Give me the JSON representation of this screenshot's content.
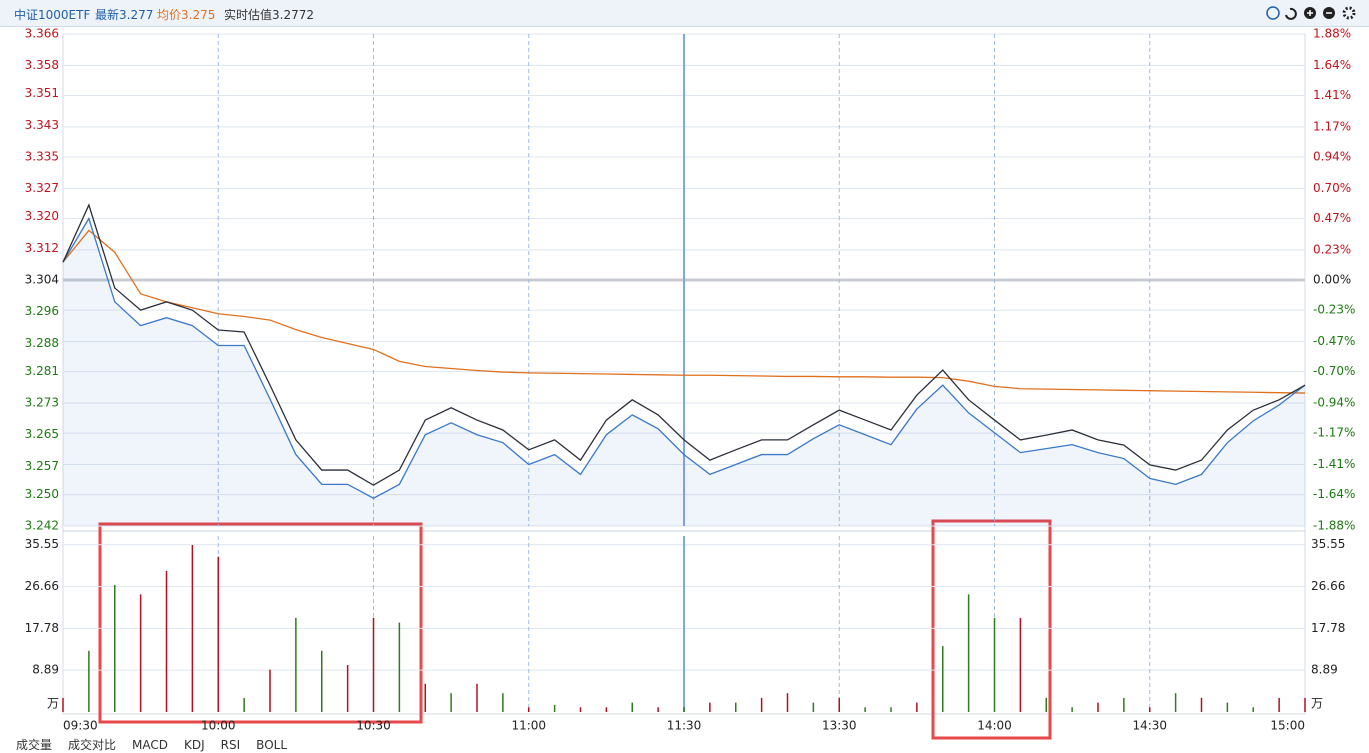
{
  "header": {
    "name": "中证1000ETF",
    "latest": "最新3.277",
    "avg": "均价3.275",
    "iopv": "实时估值3.2772"
  },
  "tabs": [
    "成交量",
    "成交对比",
    "MACD",
    "KDJ",
    "RSI",
    "BOLL"
  ],
  "chart_data": [
    {
      "type": "line",
      "x": [
        0,
        5,
        10,
        15,
        20,
        25,
        30,
        35,
        40,
        45,
        50,
        55,
        60,
        65,
        70,
        75,
        80,
        85,
        90,
        95,
        100,
        105,
        110,
        115,
        120,
        125,
        130,
        135,
        140,
        145,
        150,
        155,
        160,
        165,
        170,
        175,
        180,
        185,
        190,
        195,
        200,
        205,
        210,
        215,
        220,
        225,
        230,
        235,
        240
      ],
      "series": [
        {
          "color": "#2b2f3a",
          "values": [
            3.3085,
            3.3229,
            3.302,
            3.2964,
            3.2985,
            3.2964,
            3.2914,
            3.2909,
            3.2775,
            3.2637,
            3.2561,
            3.2561,
            3.2523,
            3.2561,
            3.2687,
            3.2718,
            3.2687,
            3.2662,
            3.2612,
            3.2637,
            3.2586,
            3.2687,
            3.2738,
            3.27,
            3.2637,
            3.2586,
            3.2612,
            3.2637,
            3.2637,
            3.2675,
            3.2712,
            3.2687,
            3.2662,
            3.275,
            3.2813,
            3.2738,
            3.2687,
            3.2637,
            3.2649,
            3.2662,
            3.2637,
            3.2624,
            3.2574,
            3.2561,
            3.2586,
            3.2662,
            3.2712,
            3.2738,
            3.2775
          ]
        },
        {
          "color": "#3a78c9",
          "values": [
            3.3085,
            3.3195,
            3.2985,
            3.2925,
            3.2945,
            3.2925,
            3.2875,
            3.2875,
            3.274,
            3.26,
            3.2525,
            3.2525,
            3.249,
            3.2525,
            3.265,
            3.268,
            3.265,
            3.263,
            3.2575,
            3.26,
            3.255,
            3.265,
            3.27,
            3.2665,
            3.26,
            3.255,
            3.2575,
            3.26,
            3.26,
            3.264,
            3.2675,
            3.265,
            3.2625,
            3.2715,
            3.2775,
            3.2705,
            3.2655,
            3.2605,
            3.2615,
            3.2625,
            3.2605,
            3.259,
            3.254,
            3.2525,
            3.255,
            3.263,
            3.2685,
            3.2725,
            3.2775
          ]
        },
        {
          "color": "#e0701e",
          "values": [
            3.3085,
            3.3165,
            3.311,
            3.3005,
            3.2985,
            3.297,
            3.2955,
            3.2948,
            3.2939,
            3.2915,
            3.2895,
            3.288,
            3.2865,
            3.2835,
            3.2822,
            3.2817,
            3.2812,
            3.2808,
            3.2806,
            3.2805,
            3.2804,
            3.2803,
            3.2802,
            3.2801,
            3.28,
            3.28,
            3.2799,
            3.2798,
            3.2797,
            3.2797,
            3.2796,
            3.2796,
            3.2795,
            3.2795,
            3.2794,
            3.2785,
            3.2772,
            3.2766,
            3.2765,
            3.2764,
            3.2763,
            3.2762,
            3.2761,
            3.276,
            3.2759,
            3.2758,
            3.2757,
            3.2756,
            3.2755
          ]
        }
      ],
      "xlim": [
        0,
        240
      ],
      "ylim": [
        3.242,
        3.366
      ],
      "yticks": [
        3.366,
        3.358,
        3.351,
        3.343,
        3.335,
        3.327,
        {
          "value": 3.32,
          "label": "3.320"
        },
        3.312,
        3.304,
        3.296,
        3.288,
        3.281,
        3.273,
        3.265,
        3.257,
        {
          "value": 3.25,
          "label": "3.250"
        },
        3.242
      ],
      "y2lim": [
        -1.88,
        1.88
      ],
      "y2ticks": [
        {
          "value": 1.88,
          "label": "1.88%"
        },
        {
          "value": 1.64,
          "label": "1.64%"
        },
        {
          "value": 1.41,
          "label": "1.41%"
        },
        {
          "value": 1.17,
          "label": "1.17%"
        },
        {
          "value": 0.94,
          "label": "0.94%"
        },
        {
          "value": 0.7,
          "label": "0.70%"
        },
        {
          "value": 0.47,
          "label": "0.47%"
        },
        {
          "value": 0.23,
          "label": "0.23%"
        },
        {
          "value": 0,
          "label": "0.00%"
        },
        {
          "value": -0.23,
          "label": "-0.23%"
        },
        {
          "value": -0.47,
          "label": "-0.47%"
        },
        {
          "value": -0.7,
          "label": "-0.70%"
        },
        {
          "value": -0.94,
          "label": "-0.94%"
        },
        {
          "value": -1.17,
          "label": "-1.17%"
        },
        {
          "value": -1.41,
          "label": "-1.41%"
        },
        {
          "value": -1.64,
          "label": "-1.64%"
        },
        {
          "value": -1.88,
          "label": "-1.88%"
        }
      ],
      "grid": true
    },
    {
      "type": "bar",
      "x": [
        0,
        5,
        10,
        15,
        20,
        25,
        30,
        35,
        40,
        45,
        50,
        55,
        60,
        65,
        70,
        75,
        80,
        85,
        90,
        95,
        100,
        105,
        110,
        115,
        120,
        125,
        130,
        135,
        140,
        145,
        150,
        155,
        160,
        165,
        170,
        175,
        180,
        185,
        190,
        195,
        200,
        205,
        210,
        215,
        220,
        225,
        230,
        235,
        240
      ],
      "values": [
        3,
        13,
        27,
        25,
        30,
        35.5,
        33,
        3,
        9,
        20,
        13,
        10,
        20,
        19,
        6,
        4,
        6,
        4,
        1,
        1.5,
        1,
        1,
        2,
        1,
        1,
        2,
        2,
        3,
        4,
        2,
        3,
        1,
        1,
        2,
        14,
        25,
        20,
        20,
        3,
        1,
        2,
        3,
        1,
        4,
        3,
        2,
        1,
        3,
        3
      ],
      "colors": [
        "#b01020",
        "#2f7a1e",
        "#2f7a1e",
        "#b01020",
        "#b01020",
        "#b01020",
        "#b01020",
        "#2f7a1e",
        "#b01020",
        "#2f7a1e",
        "#2f7a1e",
        "#b01020",
        "#b01020",
        "#2f7a1e",
        "#b01020",
        "#2f7a1e",
        "#b01020",
        "#2f7a1e",
        "#b01020",
        "#2f7a1e",
        "#b01020",
        "#b01020",
        "#2f7a1e",
        "#b01020",
        "#2f7a1e",
        "#b01020",
        "#2f7a1e",
        "#b01020",
        "#b01020",
        "#2f7a1e",
        "#b01020",
        "#2f7a1e",
        "#2f7a1e",
        "#b01020",
        "#2f7a1e",
        "#2f7a1e",
        "#2f7a1e",
        "#b01020",
        "#2f7a1e",
        "#2f7a1e",
        "#b01020",
        "#2f7a1e",
        "#b01020",
        "#2f7a1e",
        "#b01020",
        "#2f7a1e",
        "#2f7a1e",
        "#b01020",
        "#b01020"
      ],
      "xlim": [
        0,
        240
      ],
      "xticks": [
        {
          "value": 0,
          "label": "09:30"
        },
        {
          "value": 30,
          "label": "10:00"
        },
        {
          "value": 60,
          "label": "10:30"
        },
        {
          "value": 90,
          "label": "11:00"
        },
        {
          "value": 120,
          "label": "11:30"
        },
        {
          "value": 150,
          "label": "13:30"
        },
        {
          "value": 180,
          "label": "14:00"
        },
        {
          "value": 210,
          "label": "14:30"
        },
        {
          "value": 240,
          "label": "15:00"
        }
      ],
      "ylim": [
        0,
        37.4
      ],
      "yticks": [
        {
          "value": 0,
          "label": "万"
        },
        8.89,
        17.78,
        26.66,
        35.55
      ],
      "grid": true
    }
  ]
}
